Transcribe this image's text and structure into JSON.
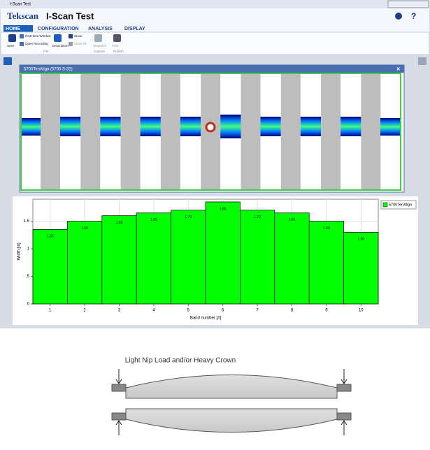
{
  "window": {
    "title": "I-Scan Test"
  },
  "app": {
    "logo": "Tekscan",
    "title": "I-Scan Test",
    "tabs": [
      "HOME",
      "CONFIGURATION",
      "ANALYSIS",
      "DISPLAY"
    ]
  },
  "ribbon": {
    "buttons": [
      "Save",
      "Real-time Window",
      "Open Recording",
      "Description",
      "Close",
      "Close All",
      "Snapshot",
      "Print"
    ],
    "groups": [
      "File",
      "Capture",
      "Publish"
    ]
  },
  "panel": {
    "title": "5700TenAlign (5700 S-32)"
  },
  "chart_data": {
    "type": "bar",
    "categories": [
      "1",
      "2",
      "3",
      "4",
      "5",
      "6",
      "7",
      "8",
      "9",
      "10"
    ],
    "series": [
      {
        "name": "5700TenAlign",
        "color": "#00ff00",
        "values": [
          1.35,
          1.5,
          1.6,
          1.65,
          1.7,
          1.85,
          1.7,
          1.65,
          1.5,
          1.3
        ],
        "value_labels": [
          "1.35",
          "1.50",
          "1.60",
          "1.65",
          "1.70",
          "1.85",
          "1.70",
          "1.65",
          "1.50",
          "1.30"
        ]
      }
    ],
    "x_label": "Band number [#]",
    "y_label": "Width [in]",
    "ylim": [
      0,
      1.9
    ],
    "yticks": [
      0,
      {
        "value": 0.5,
        "label": ".5"
      },
      1,
      1.5
    ],
    "grid": true,
    "legend": "top-right"
  },
  "diagram": {
    "caption": "Light Nip Load and/or Heavy Crown"
  }
}
